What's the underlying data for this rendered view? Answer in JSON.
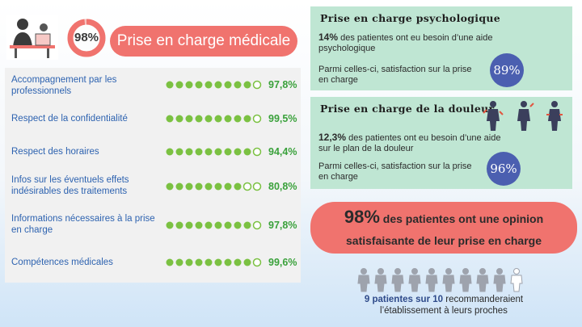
{
  "medical": {
    "ring_value": "98%",
    "ring_fraction": 0.98,
    "title": "Prise en charge médicale",
    "criteria": [
      {
        "label": "Accompagnement par les professionnels",
        "value": "97,8%"
      },
      {
        "label": "Respect de la confidentialité",
        "value": "99,5%"
      },
      {
        "label": "Respect des horaires",
        "value": "94,4%"
      },
      {
        "label": "Infos sur les éventuels effets indésirables des traitements",
        "value": "80,8%"
      },
      {
        "label": "Informations nécessaires à la prise en charge",
        "value": "97,8%"
      },
      {
        "label": "Compétences médicales",
        "value": "99,6%"
      }
    ]
  },
  "psychological": {
    "title": "Prise en charge psychologique",
    "need_value": "14%",
    "need_text": "des patientes ont eu besoin d’une aide psychologique",
    "satisfaction_text": "Parmi celles-ci, satisfaction sur la prise en charge",
    "satisfaction_value": "89%"
  },
  "pain": {
    "title": "Prise en charge de la douleur",
    "need_value": "12,3%",
    "need_text": "des patientes ont eu besoin d’une aide sur le plan de la douleur",
    "satisfaction_text": "Parmi celles-ci, satisfaction sur la prise en charge",
    "satisfaction_value": "96%"
  },
  "overall": {
    "value": "98%",
    "line1": "des patientes ont une opinion",
    "line2": "satisfaisante de leur prise en charge"
  },
  "recommend": {
    "count": "9 patientes sur 10",
    "text1": "recommanderaient",
    "text2": "l’établissement à leurs proches",
    "filled": 9,
    "total": 10
  },
  "colors": {
    "accent_red": "#f0736e",
    "green": "#3aa13b",
    "mint": "#bfe6d3",
    "badge_blue": "#4b5fb0",
    "label_blue": "#2e63b0"
  }
}
